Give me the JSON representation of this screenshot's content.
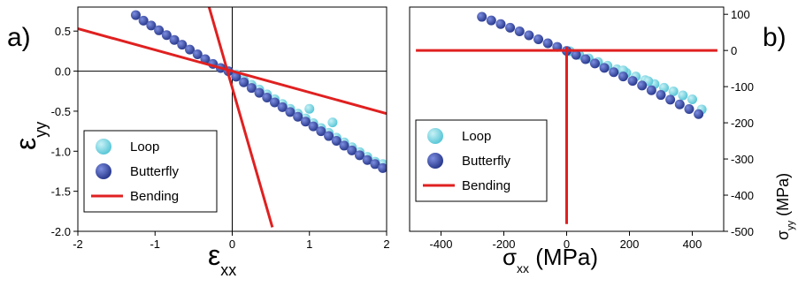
{
  "figure": {
    "panel_a_label": "a)",
    "panel_b_label": "b)"
  },
  "colors": {
    "loop": "#5cc8d8",
    "butterfly": "#2b3b8f",
    "bending": "#e02020",
    "axis": "#000000"
  },
  "chart_data": [
    {
      "panel": "a",
      "type": "scatter",
      "xlabel": {
        "main": "ε",
        "sub": "xx"
      },
      "ylabel": {
        "main": "ε",
        "sub": "yy"
      },
      "xlim": [
        -2,
        2
      ],
      "ylim": [
        -2.0,
        0.8
      ],
      "xticks": [
        -2,
        -1,
        0,
        1,
        2
      ],
      "xtick_labels": [
        "-2",
        "-1",
        "0",
        "1",
        "2"
      ],
      "yticks": [
        -2.0,
        -1.5,
        -1.0,
        -0.5,
        0.0,
        0.5
      ],
      "ytick_labels": [
        "-2.0",
        "-1.5",
        "-1.0",
        "-0.5",
        "0.0",
        "0.5"
      ],
      "zero_lines": true,
      "legend_position": "bottom-left",
      "legend": [
        "Loop",
        "Butterfly",
        "Bending"
      ],
      "series": [
        {
          "name": "Loop",
          "kind": "points",
          "x": [
            0.05,
            0.15,
            0.25,
            0.35,
            0.45,
            0.55,
            0.65,
            0.75,
            0.85,
            0.95,
            1.05,
            1.15,
            1.25,
            1.35,
            1.45,
            1.55,
            1.65,
            1.75,
            1.85,
            1.95,
            1.0,
            1.3
          ],
          "y": [
            -0.04,
            -0.11,
            -0.17,
            -0.23,
            -0.29,
            -0.35,
            -0.41,
            -0.47,
            -0.53,
            -0.59,
            -0.65,
            -0.71,
            -0.77,
            -0.83,
            -0.89,
            -0.95,
            -1.01,
            -1.07,
            -1.13,
            -1.16,
            -0.47,
            -0.64
          ]
        },
        {
          "name": "Butterfly",
          "kind": "points",
          "x": [
            -1.25,
            -1.15,
            -1.05,
            -0.95,
            -0.85,
            -0.75,
            -0.65,
            -0.55,
            -0.45,
            -0.35,
            -0.25,
            -0.15,
            -0.05,
            0.05,
            0.15,
            0.25,
            0.35,
            0.45,
            0.55,
            0.65,
            0.75,
            0.85,
            0.95,
            1.05,
            1.15,
            1.25,
            1.35,
            1.45,
            1.55,
            1.65,
            1.75,
            1.85,
            1.95
          ],
          "y": [
            0.7,
            0.63,
            0.57,
            0.51,
            0.45,
            0.39,
            0.33,
            0.27,
            0.21,
            0.15,
            0.09,
            0.04,
            0.0,
            -0.07,
            -0.14,
            -0.21,
            -0.27,
            -0.33,
            -0.39,
            -0.45,
            -0.51,
            -0.57,
            -0.63,
            -0.69,
            -0.75,
            -0.81,
            -0.87,
            -0.93,
            -0.99,
            -1.05,
            -1.11,
            -1.16,
            -1.21
          ]
        },
        {
          "name": "Bending",
          "kind": "lines",
          "lines": [
            {
              "x": [
                -2.0,
                2.0
              ],
              "y": [
                0.53,
                -0.53
              ]
            },
            {
              "x": [
                -0.3,
                0.52
              ],
              "y": [
                0.8,
                -1.95
              ]
            }
          ]
        }
      ]
    },
    {
      "panel": "b",
      "type": "scatter",
      "xlabel": {
        "main": "σ",
        "sub": "xx",
        "unit": " (MPa)"
      },
      "ylabel": {
        "main": "σ",
        "sub": "yy",
        "unit": " (MPa)"
      },
      "xlim": [
        -500,
        500
      ],
      "ylim": [
        -500,
        120
      ],
      "xticks": [
        -400,
        -200,
        0,
        200,
        400
      ],
      "xtick_labels": [
        "-400",
        "-200",
        "0",
        "200",
        "400"
      ],
      "yticks": [
        100,
        0,
        -100,
        -200,
        -300,
        -400,
        -500
      ],
      "ytick_labels": [
        "100",
        "0",
        "-100",
        "-200",
        "-300",
        "-400",
        "-500"
      ],
      "y_axis_side": "right",
      "legend_position": "bottom-left",
      "legend": [
        "Loop",
        "Butterfly",
        "Bending"
      ],
      "series": [
        {
          "name": "Loop",
          "kind": "points",
          "x": [
            10,
            40,
            70,
            100,
            130,
            160,
            190,
            220,
            250,
            280,
            310,
            340,
            370,
            400,
            430,
            260,
            180
          ],
          "y": [
            -2,
            -12,
            -22,
            -32,
            -42,
            -52,
            -62,
            -72,
            -82,
            -93,
            -103,
            -113,
            -124,
            -135,
            -163,
            -85,
            -55
          ]
        },
        {
          "name": "Butterfly",
          "kind": "points",
          "x": [
            -270,
            -240,
            -210,
            -180,
            -150,
            -120,
            -90,
            -60,
            -30,
            0,
            30,
            60,
            90,
            120,
            150,
            180,
            210,
            240,
            270,
            300,
            330,
            360,
            390,
            420
          ],
          "y": [
            93,
            83,
            73,
            63,
            53,
            42,
            31,
            20,
            10,
            -1,
            -12,
            -24,
            -36,
            -48,
            -60,
            -72,
            -84,
            -97,
            -110,
            -123,
            -136,
            -149,
            -162,
            -176
          ]
        },
        {
          "name": "Bending",
          "kind": "lines",
          "lines": [
            {
              "x": [
                -480,
                480
              ],
              "y": [
                0,
                0
              ]
            },
            {
              "x": [
                0,
                0
              ],
              "y": [
                10,
                -480
              ]
            }
          ]
        }
      ]
    }
  ]
}
